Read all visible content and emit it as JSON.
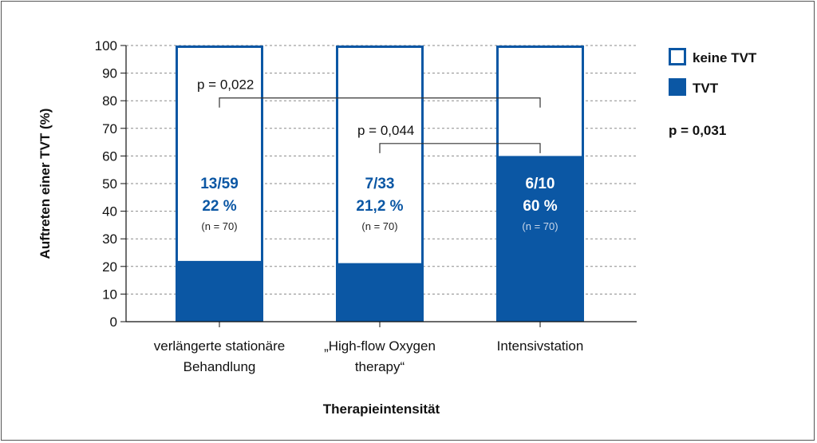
{
  "chart_data": {
    "type": "bar",
    "stacked": true,
    "percent_scale": true,
    "ylabel": "Auftreten einer TVT (%)",
    "xlabel": "Therapieintensität",
    "ylim": [
      0,
      100
    ],
    "yticks": [
      "0",
      "10",
      "20",
      "30",
      "40",
      "50",
      "60",
      "70",
      "80",
      "90",
      "100"
    ],
    "grid": "horizontal dashed",
    "legend_position": "right",
    "categories": [
      {
        "line1": "verlängerte stationäre",
        "line2": "Behandlung"
      },
      {
        "line1": "„High-flow Oxygen",
        "line2": "therapy“"
      },
      {
        "line1": "Intensivstation",
        "line2": ""
      }
    ],
    "series": [
      {
        "name": "TVT",
        "color": "#0b57a4",
        "fill": "solid",
        "values": [
          22,
          21.2,
          60
        ]
      },
      {
        "name": "keine TVT",
        "color": "#0b57a4",
        "fill": "outline",
        "values": [
          78,
          78.8,
          40
        ]
      }
    ],
    "bar_labels": [
      {
        "count": "13/59",
        "percent": "22 %",
        "n": "(n = 70)"
      },
      {
        "count": "7/33",
        "percent": "21,2 %",
        "n": "(n = 70)"
      },
      {
        "count": "6/10",
        "percent": "60 %",
        "n": "(n = 70)"
      }
    ],
    "comparisons": [
      {
        "label": "p = 0,022",
        "from": 0,
        "to": 2,
        "y": 81
      },
      {
        "label": "p = 0,044",
        "from": 1,
        "to": 2,
        "y": 64.5
      }
    ],
    "overall_p": "p = 0,031"
  }
}
